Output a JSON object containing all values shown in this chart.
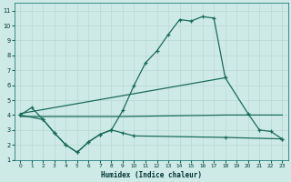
{
  "xlabel": "Humidex (Indice chaleur)",
  "background_color": "#ceeae6",
  "grid_color": "#b8d8d4",
  "line_color": "#1a6b5a",
  "xlim": [
    -0.5,
    23.5
  ],
  "ylim": [
    1,
    11.5
  ],
  "xticks": [
    0,
    1,
    2,
    3,
    4,
    5,
    6,
    7,
    8,
    9,
    10,
    11,
    12,
    13,
    14,
    15,
    16,
    17,
    18,
    19,
    20,
    21,
    22,
    23
  ],
  "yticks": [
    1,
    2,
    3,
    4,
    5,
    6,
    7,
    8,
    9,
    10,
    11
  ],
  "main_x": [
    0,
    1,
    2,
    3,
    4,
    5,
    6,
    7,
    8,
    9,
    10,
    11,
    12,
    13,
    14,
    15,
    16,
    17,
    18,
    20,
    21,
    22,
    23
  ],
  "main_y": [
    4.0,
    4.5,
    3.7,
    2.8,
    2.0,
    1.5,
    2.2,
    2.7,
    3.0,
    4.3,
    6.0,
    7.5,
    8.3,
    9.4,
    10.4,
    10.3,
    10.6,
    10.5,
    6.5,
    4.1,
    3.0,
    2.9,
    2.4
  ],
  "trend1_x": [
    0,
    18
  ],
  "trend1_y": [
    4.1,
    6.5
  ],
  "trend2_x": [
    0,
    9,
    18,
    23
  ],
  "trend2_y": [
    3.9,
    3.9,
    4.0,
    4.0
  ],
  "lower_x": [
    0,
    2,
    3,
    4,
    5,
    6,
    7,
    8,
    9,
    10,
    18,
    23
  ],
  "lower_y": [
    4.0,
    3.7,
    2.8,
    2.0,
    1.5,
    2.2,
    2.7,
    3.0,
    2.8,
    2.6,
    2.5,
    2.4
  ]
}
